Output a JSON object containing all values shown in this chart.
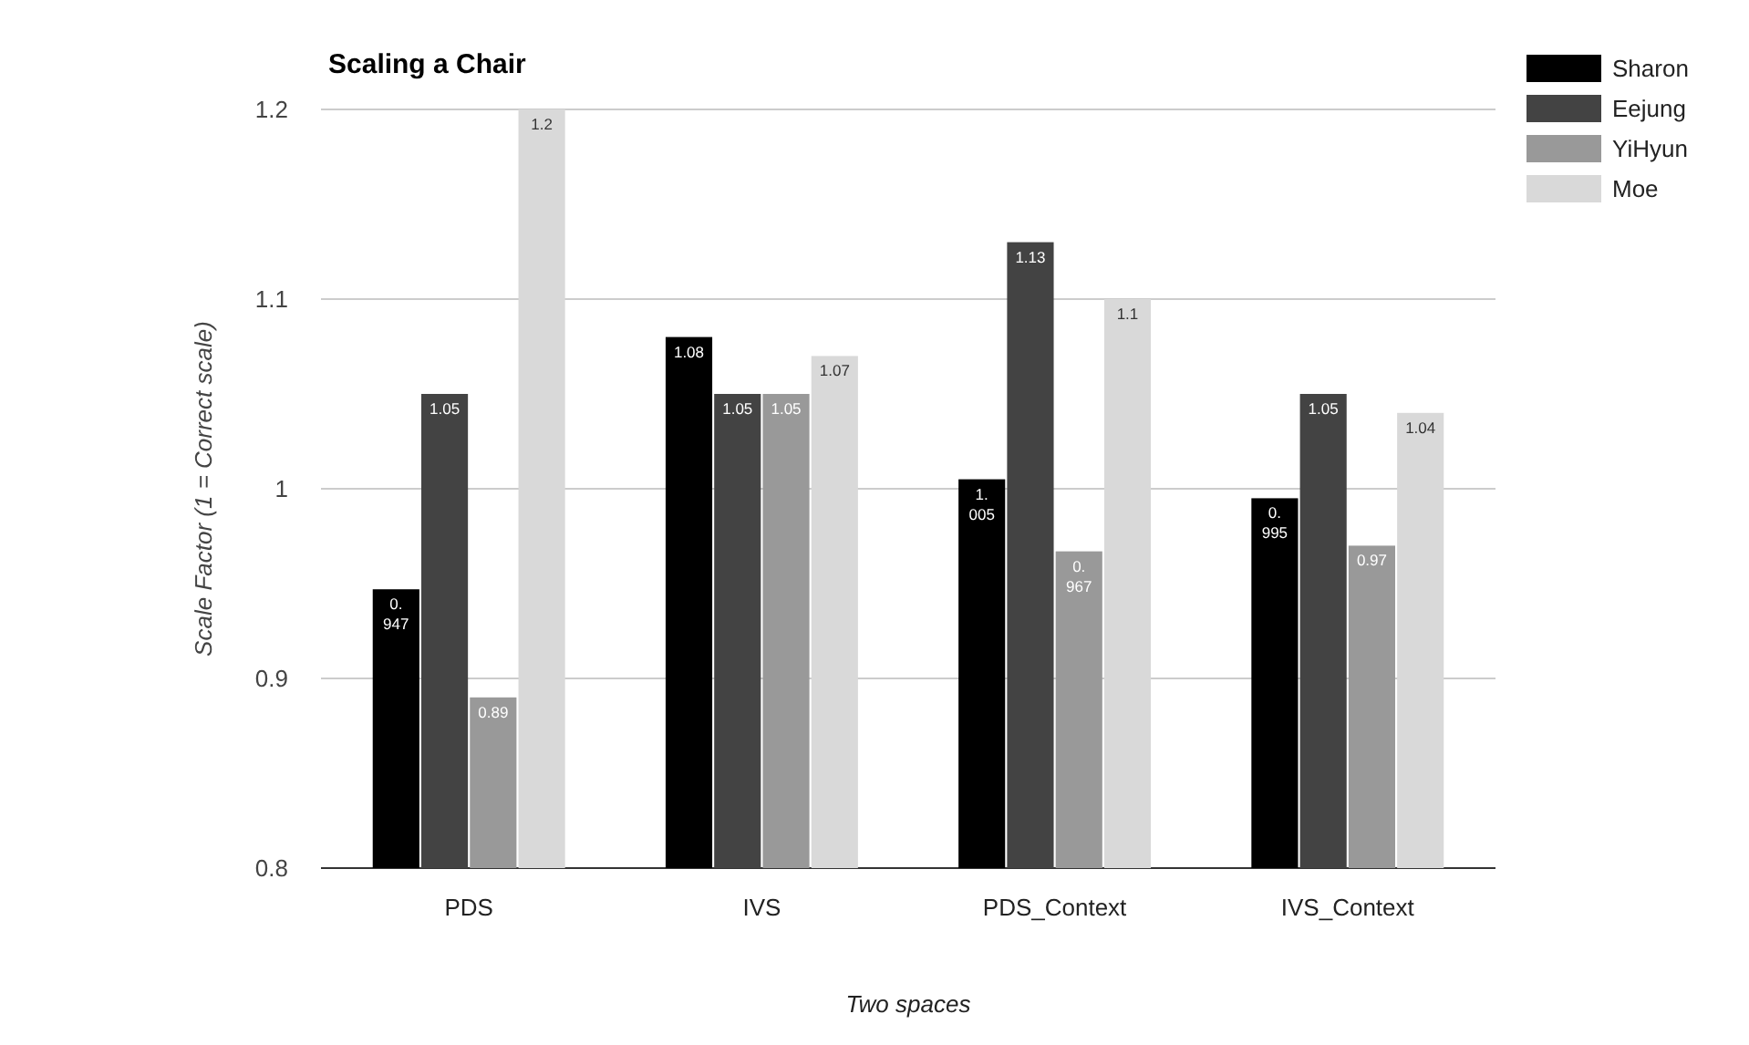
{
  "chart_data": {
    "type": "bar",
    "title": "Scaling a Chair",
    "xlabel": "Two spaces",
    "ylabel": "Scale Factor (1 = Correct scale)",
    "categories": [
      "PDS",
      "IVS",
      "PDS_Context",
      "IVS_Context"
    ],
    "series": [
      {
        "name": "Sharon",
        "color": "#000000",
        "values": [
          0.947,
          1.08,
          1.005,
          0.995
        ]
      },
      {
        "name": "Eejung",
        "color": "#434343",
        "values": [
          1.05,
          1.05,
          1.13,
          1.05
        ]
      },
      {
        "name": "YiHyun",
        "color": "#999999",
        "values": [
          0.89,
          1.05,
          0.967,
          0.97
        ]
      },
      {
        "name": "Moe",
        "color": "#d9d9d9",
        "values": [
          1.2,
          1.07,
          1.1,
          1.04
        ]
      }
    ],
    "ylim": [
      0.8,
      1.2
    ],
    "yticks": [
      0.8,
      0.9,
      1,
      1.1,
      1.2
    ],
    "grid": "y",
    "legend": "right",
    "data_labels": true
  }
}
